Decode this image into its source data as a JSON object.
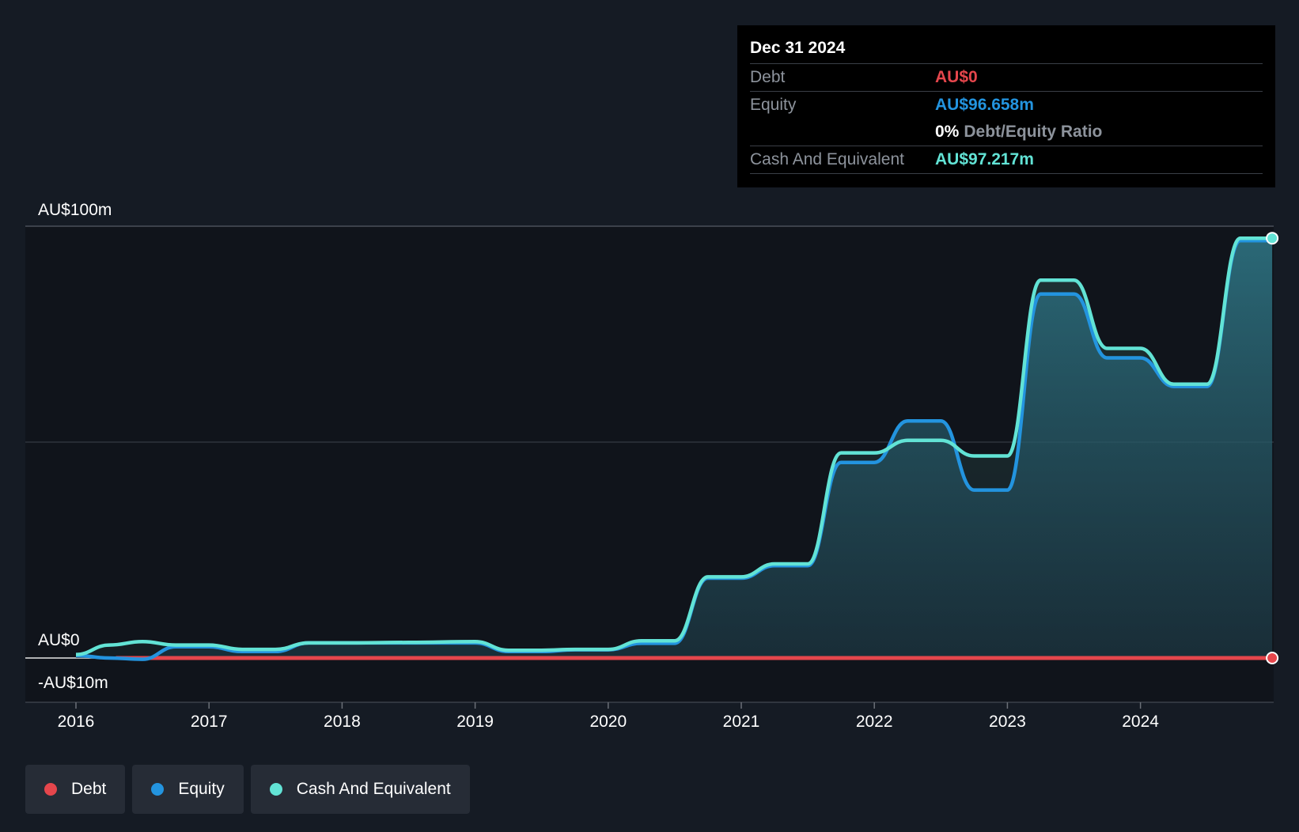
{
  "chart_data": {
    "type": "area",
    "currency_axis_labels": {
      "top": "AU$100m",
      "zero": "AU$0",
      "bottom": "-AU$10m"
    },
    "ylim": [
      -10,
      100
    ],
    "x_ticks": [
      "2016",
      "2017",
      "2018",
      "2019",
      "2020",
      "2021",
      "2022",
      "2023",
      "2024"
    ],
    "grid": true,
    "series": [
      {
        "name": "Debt",
        "color": "#e5464c",
        "x": [
          2016.3,
          2024.99
        ],
        "values": [
          0,
          0
        ]
      },
      {
        "name": "Equity",
        "color": "#2394df",
        "x": [
          2016.0,
          2016.25,
          2016.5,
          2016.75,
          2017.0,
          2017.25,
          2017.5,
          2017.75,
          2018.0,
          2018.5,
          2019.0,
          2019.25,
          2019.5,
          2019.75,
          2020.0,
          2020.25,
          2020.5,
          2020.75,
          2021.0,
          2021.25,
          2021.5,
          2021.75,
          2022.0,
          2022.25,
          2022.5,
          2022.75,
          2023.0,
          2023.25,
          2023.5,
          2023.75,
          2024.0,
          2024.25,
          2024.5,
          2024.75,
          2024.99
        ],
        "values": [
          0.6,
          0.0,
          -0.3,
          2.6,
          2.6,
          1.5,
          1.5,
          3.5,
          3.5,
          3.5,
          3.5,
          1.5,
          1.5,
          1.9,
          1.9,
          3.4,
          3.4,
          18.5,
          18.5,
          21.4,
          21.4,
          45.3,
          45.3,
          54.9,
          54.9,
          38.9,
          38.9,
          84.3,
          84.3,
          69.5,
          69.5,
          62.9,
          62.9,
          96.658,
          96.658
        ]
      },
      {
        "name": "Cash And Equivalent",
        "color": "#62e3d5",
        "x": [
          2016.0,
          2016.25,
          2016.5,
          2016.75,
          2017.0,
          2017.25,
          2017.5,
          2017.75,
          2018.0,
          2018.5,
          2019.0,
          2019.25,
          2019.5,
          2019.75,
          2020.0,
          2020.25,
          2020.5,
          2020.75,
          2021.0,
          2021.25,
          2021.5,
          2021.75,
          2022.0,
          2022.25,
          2022.5,
          2022.75,
          2023.0,
          2023.25,
          2023.5,
          2023.75,
          2024.0,
          2024.25,
          2024.5,
          2024.75,
          2024.99
        ],
        "values": [
          0.8,
          3.0,
          3.8,
          3.0,
          3.0,
          2.0,
          2.0,
          3.5,
          3.5,
          3.6,
          3.8,
          1.8,
          1.8,
          2.0,
          2.0,
          4.0,
          4.0,
          18.8,
          18.8,
          21.8,
          21.8,
          47.5,
          47.5,
          50.4,
          50.4,
          46.8,
          46.8,
          87.5,
          87.5,
          71.7,
          71.7,
          63.4,
          63.4,
          97.217,
          97.217
        ]
      }
    ]
  },
  "tooltip": {
    "date": "Dec 31 2024",
    "debt_label": "Debt",
    "debt_value": "AU$0",
    "equity_label": "Equity",
    "equity_value": "AU$96.658m",
    "ratio_pct": "0%",
    "ratio_text": "Debt/Equity Ratio",
    "cash_label": "Cash And Equivalent",
    "cash_value": "AU$97.217m"
  },
  "legend": {
    "debt": "Debt",
    "equity": "Equity",
    "cash": "Cash And Equivalent"
  },
  "colors": {
    "background": "#151b24",
    "plot_background": "#10141b",
    "debt": "#e5464c",
    "equity": "#2394df",
    "cash": "#62e3d5"
  }
}
